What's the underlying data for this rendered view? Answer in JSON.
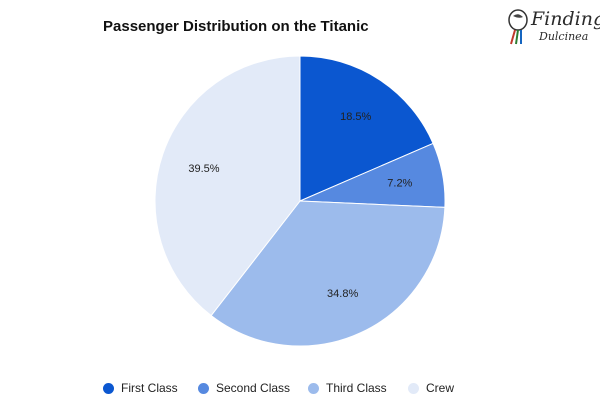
{
  "logo": {
    "line1": "Finding",
    "line2": "Dulcinea"
  },
  "chart_data": {
    "type": "pie",
    "title": "Passenger Distribution on the Titanic",
    "legend_position": "bottom",
    "slices": [
      {
        "label": "First Class",
        "value": 18.5,
        "display": "18.5%",
        "color": "#0b57d0"
      },
      {
        "label": "Second Class",
        "value": 7.2,
        "display": "7.2%",
        "color": "#5689e0"
      },
      {
        "label": "Third Class",
        "value": 34.8,
        "display": "34.8%",
        "color": "#9cbbec"
      },
      {
        "label": "Crew",
        "value": 39.5,
        "display": "39.5%",
        "color": "#e2eaf8"
      }
    ]
  }
}
